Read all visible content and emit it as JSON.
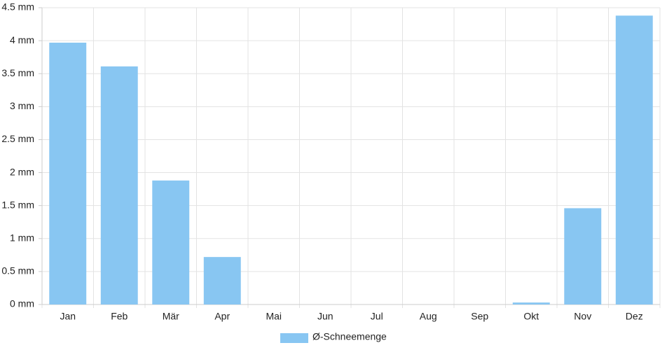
{
  "chart_data": {
    "type": "bar",
    "categories": [
      "Jan",
      "Feb",
      "Mär",
      "Apr",
      "Mai",
      "Jun",
      "Jul",
      "Aug",
      "Sep",
      "Okt",
      "Nov",
      "Dez"
    ],
    "series": [
      {
        "name": "Ø-Schneemenge",
        "color": "#88c6f2",
        "values": [
          3.97,
          3.61,
          1.88,
          0.72,
          0,
          0,
          0,
          0,
          0,
          0.03,
          1.46,
          4.38
        ]
      }
    ],
    "ylim": [
      0,
      4.5
    ],
    "yticks": [
      {
        "value": 0,
        "label": "0 mm"
      },
      {
        "value": 0.5,
        "label": "0.5 mm"
      },
      {
        "value": 1,
        "label": "1 mm"
      },
      {
        "value": 1.5,
        "label": "1.5 mm"
      },
      {
        "value": 2,
        "label": "2 mm"
      },
      {
        "value": 2.5,
        "label": "2.5 mm"
      },
      {
        "value": 3,
        "label": "3 mm"
      },
      {
        "value": 3.5,
        "label": "3.5 mm"
      },
      {
        "value": 4,
        "label": "4 mm"
      },
      {
        "value": 4.5,
        "label": "4.5 mm"
      }
    ],
    "grid": true,
    "legend": "bottom"
  }
}
